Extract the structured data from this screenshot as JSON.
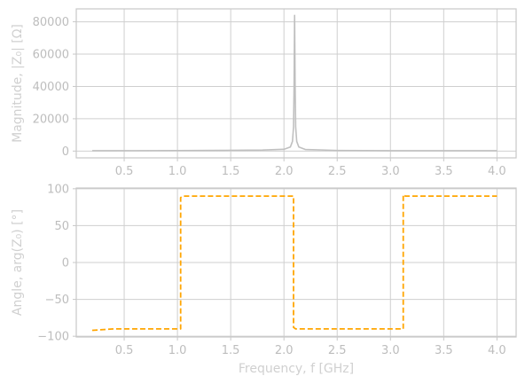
{
  "chart_data": [
    {
      "type": "line",
      "ylabel": "Magnitude, |Z₀| [Ω]",
      "xlim": [
        0.05,
        4.18
      ],
      "ylim": [
        -4200,
        88000
      ],
      "xticks": [
        "0.5",
        "1.0",
        "1.5",
        "2.0",
        "2.5",
        "3.0",
        "3.5",
        "4.0"
      ],
      "yticks": [
        "0",
        "20000",
        "40000",
        "60000",
        "80000"
      ],
      "grid": true,
      "series": [
        {
          "color": "#c0c0c0",
          "style": "solid",
          "x": [
            0.2,
            0.6,
            1.0,
            1.4,
            1.8,
            2.0,
            2.06,
            2.08,
            2.09,
            2.095,
            2.1,
            2.105,
            2.11,
            2.12,
            2.14,
            2.2,
            2.5,
            3.0,
            3.5,
            4.0
          ],
          "y": [
            200,
            260,
            330,
            430,
            650,
            1100,
            2500,
            6000,
            15000,
            40000,
            84000,
            40000,
            15000,
            6000,
            2500,
            1000,
            400,
            250,
            220,
            230
          ]
        }
      ]
    },
    {
      "type": "line",
      "xlabel": "Frequency, f [GHz]",
      "ylabel": "Angle, arg(Z₀) [°]",
      "xlim": [
        0.05,
        4.18
      ],
      "ylim": [
        -101,
        101
      ],
      "xticks": [
        "0.5",
        "1.0",
        "1.5",
        "2.0",
        "2.5",
        "3.0",
        "3.5",
        "4.0"
      ],
      "yticks": [
        "100",
        "50",
        "0",
        "−50",
        "−100"
      ],
      "grid": true,
      "series": [
        {
          "color": "#ffa500",
          "style": "dashed",
          "x": [
            0.2,
            0.4,
            1.03,
            1.03,
            1.05,
            2.09,
            2.09,
            2.11,
            3.12,
            3.12,
            3.14,
            4.0
          ],
          "y": [
            -92,
            -90,
            -90,
            88,
            90,
            90,
            -88,
            -90,
            -90,
            92,
            90,
            90
          ]
        }
      ]
    }
  ]
}
